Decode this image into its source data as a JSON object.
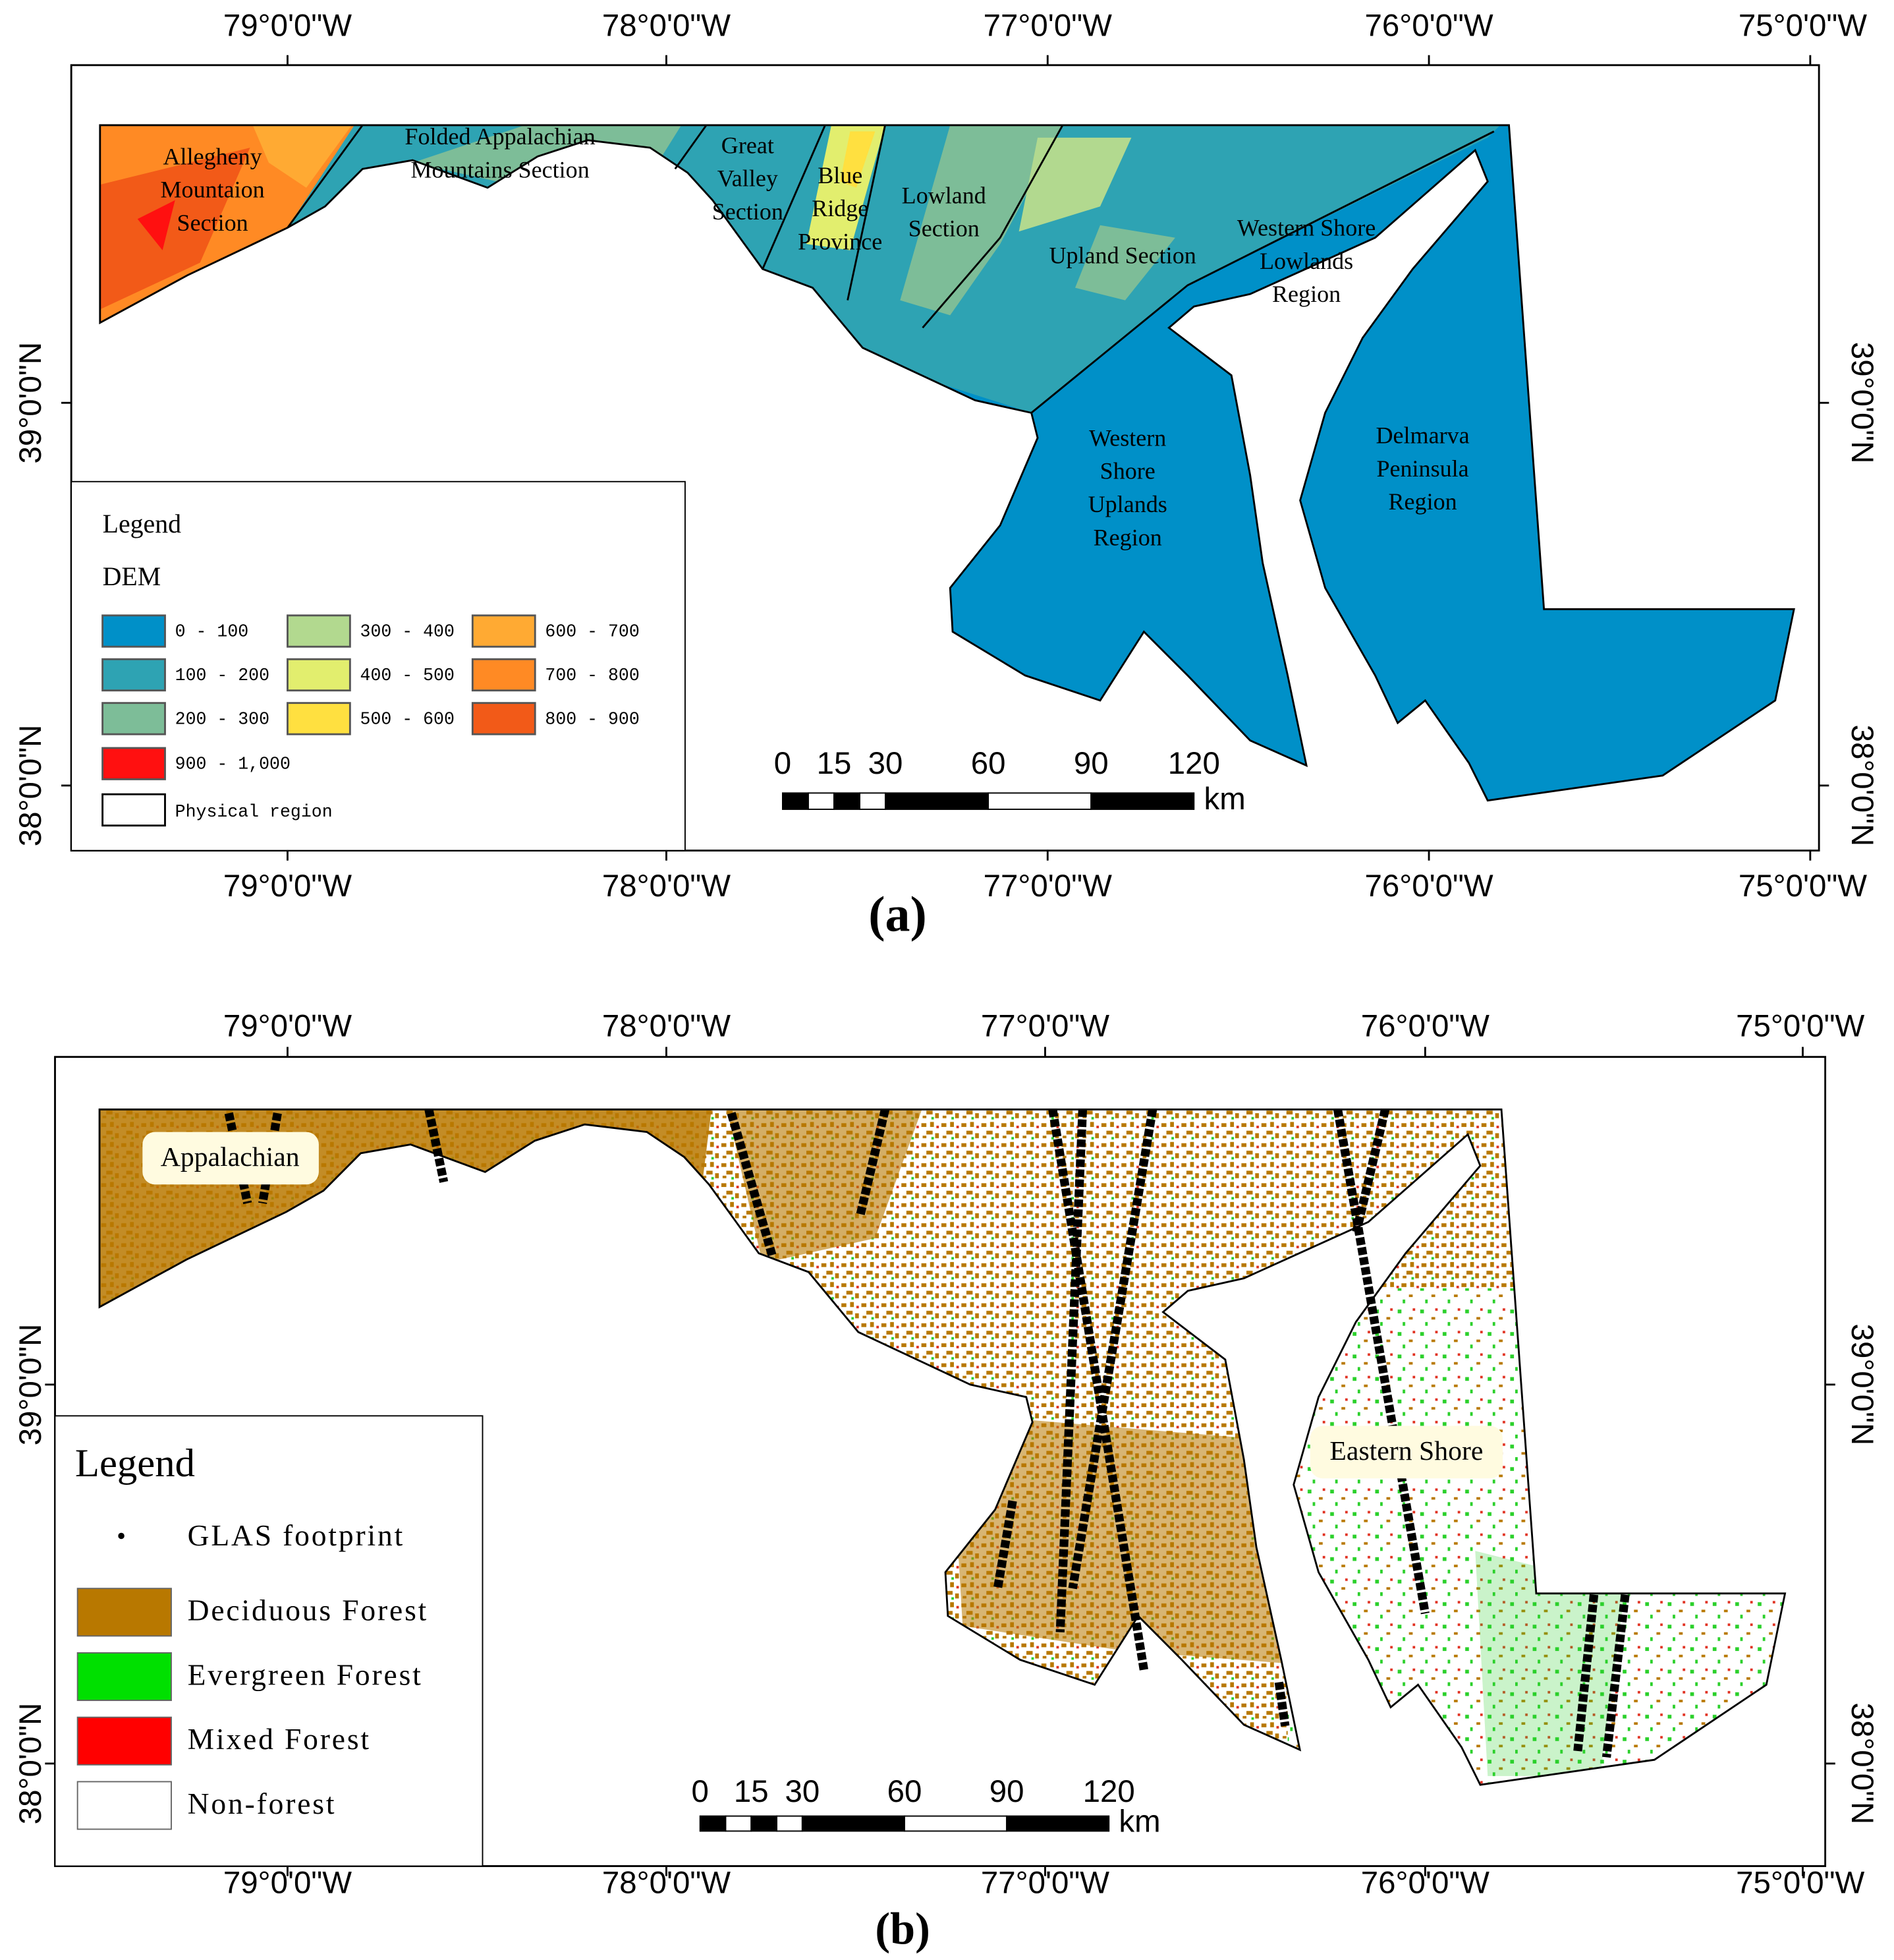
{
  "panel_a": {
    "lon_labels": [
      "79°0'0\"W",
      "78°0'0\"W",
      "77°0'0\"W",
      "76°0'0\"W",
      "75°0'0\"W"
    ],
    "lat_labels": [
      "39°0'0\"N",
      "38°0'0\"N"
    ],
    "regions": [
      {
        "lines": [
          "Allegheny",
          "Mountaion",
          "Section"
        ]
      },
      {
        "lines": [
          "Folded Appalachian",
          "Mountains Section"
        ]
      },
      {
        "lines": [
          "Great",
          "Valley",
          "Section"
        ]
      },
      {
        "lines": [
          "Blue",
          "Ridge",
          "Province"
        ]
      },
      {
        "lines": [
          "Lowland",
          "Section"
        ]
      },
      {
        "lines": [
          "Upland Section"
        ]
      },
      {
        "lines": [
          "Western Shore",
          "Lowlands",
          "Region"
        ]
      },
      {
        "lines": [
          "Western",
          "Shore",
          "Uplands",
          "Region"
        ]
      },
      {
        "lines": [
          "Delmarva",
          "Peninsula",
          "Region"
        ]
      }
    ],
    "legend": {
      "title": "Legend",
      "subtitle": "DEM",
      "items": [
        {
          "label": "0 - 100",
          "color": "#0090c8"
        },
        {
          "label": "100 - 200",
          "color": "#2ea3b3"
        },
        {
          "label": "200 - 300",
          "color": "#7dbd98"
        },
        {
          "label": "300 - 400",
          "color": "#b2d98f"
        },
        {
          "label": "400 - 500",
          "color": "#e2ee6e"
        },
        {
          "label": "500 - 600",
          "color": "#ffe040"
        },
        {
          "label": "600 - 700",
          "color": "#ffaa33"
        },
        {
          "label": "700 - 800",
          "color": "#ff8a24"
        },
        {
          "label": "800 - 900",
          "color": "#f25a18"
        },
        {
          "label": "900 - 1,000",
          "color": "#ff1010"
        }
      ],
      "boundary": "Physical region"
    },
    "scale": {
      "ticks": [
        0,
        15,
        30,
        60,
        90,
        120
      ],
      "unit": "km"
    },
    "caption": "(a)"
  },
  "panel_b": {
    "lon_labels": [
      "79°0'0\"W",
      "78°0'0\"W",
      "77°0'0\"W",
      "76°0'0\"W",
      "75°0'0\"W"
    ],
    "lat_labels": [
      "39°0'0\"N",
      "38°0'0\"N"
    ],
    "annotations": [
      "Appalachian",
      "Eastern Shore"
    ],
    "legend": {
      "title": "Legend",
      "point": "GLAS footprint",
      "items": [
        {
          "label": "Deciduous Forest",
          "color": "#b87800"
        },
        {
          "label": "Evergreen Forest",
          "color": "#00e000"
        },
        {
          "label": "Mixed Forest",
          "color": "#ff0000"
        },
        {
          "label": "Non-forest",
          "color": "#ffffff"
        }
      ]
    },
    "scale": {
      "ticks": [
        0,
        15,
        30,
        60,
        90,
        120
      ],
      "unit": "km"
    },
    "caption": "(b)"
  }
}
